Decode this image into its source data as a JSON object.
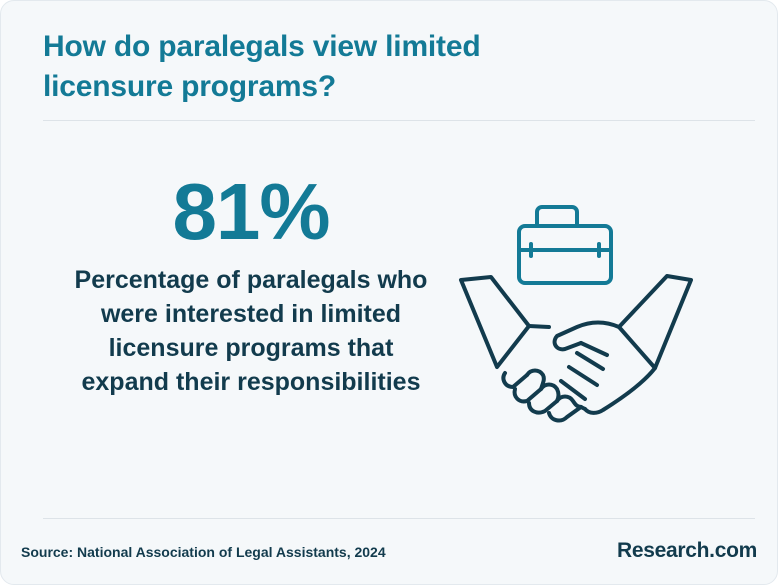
{
  "header": {
    "title": "How do paralegals view limited licensure programs?"
  },
  "stat": {
    "value": "81%",
    "description": "Percentage of paralegals who were interested in limited licensure programs that expand their responsibilities"
  },
  "illustration": {
    "icons": [
      "briefcase-icon",
      "handshake-icon"
    ],
    "briefcase_color": "#137a96",
    "handshake_color": "#123b4d"
  },
  "footer": {
    "source": "Source: National Association of Legal Assistants, 2024",
    "logo": "Research.com"
  },
  "colors": {
    "accent": "#137a96",
    "text": "#123b4d",
    "background": "#f5f8fa"
  }
}
